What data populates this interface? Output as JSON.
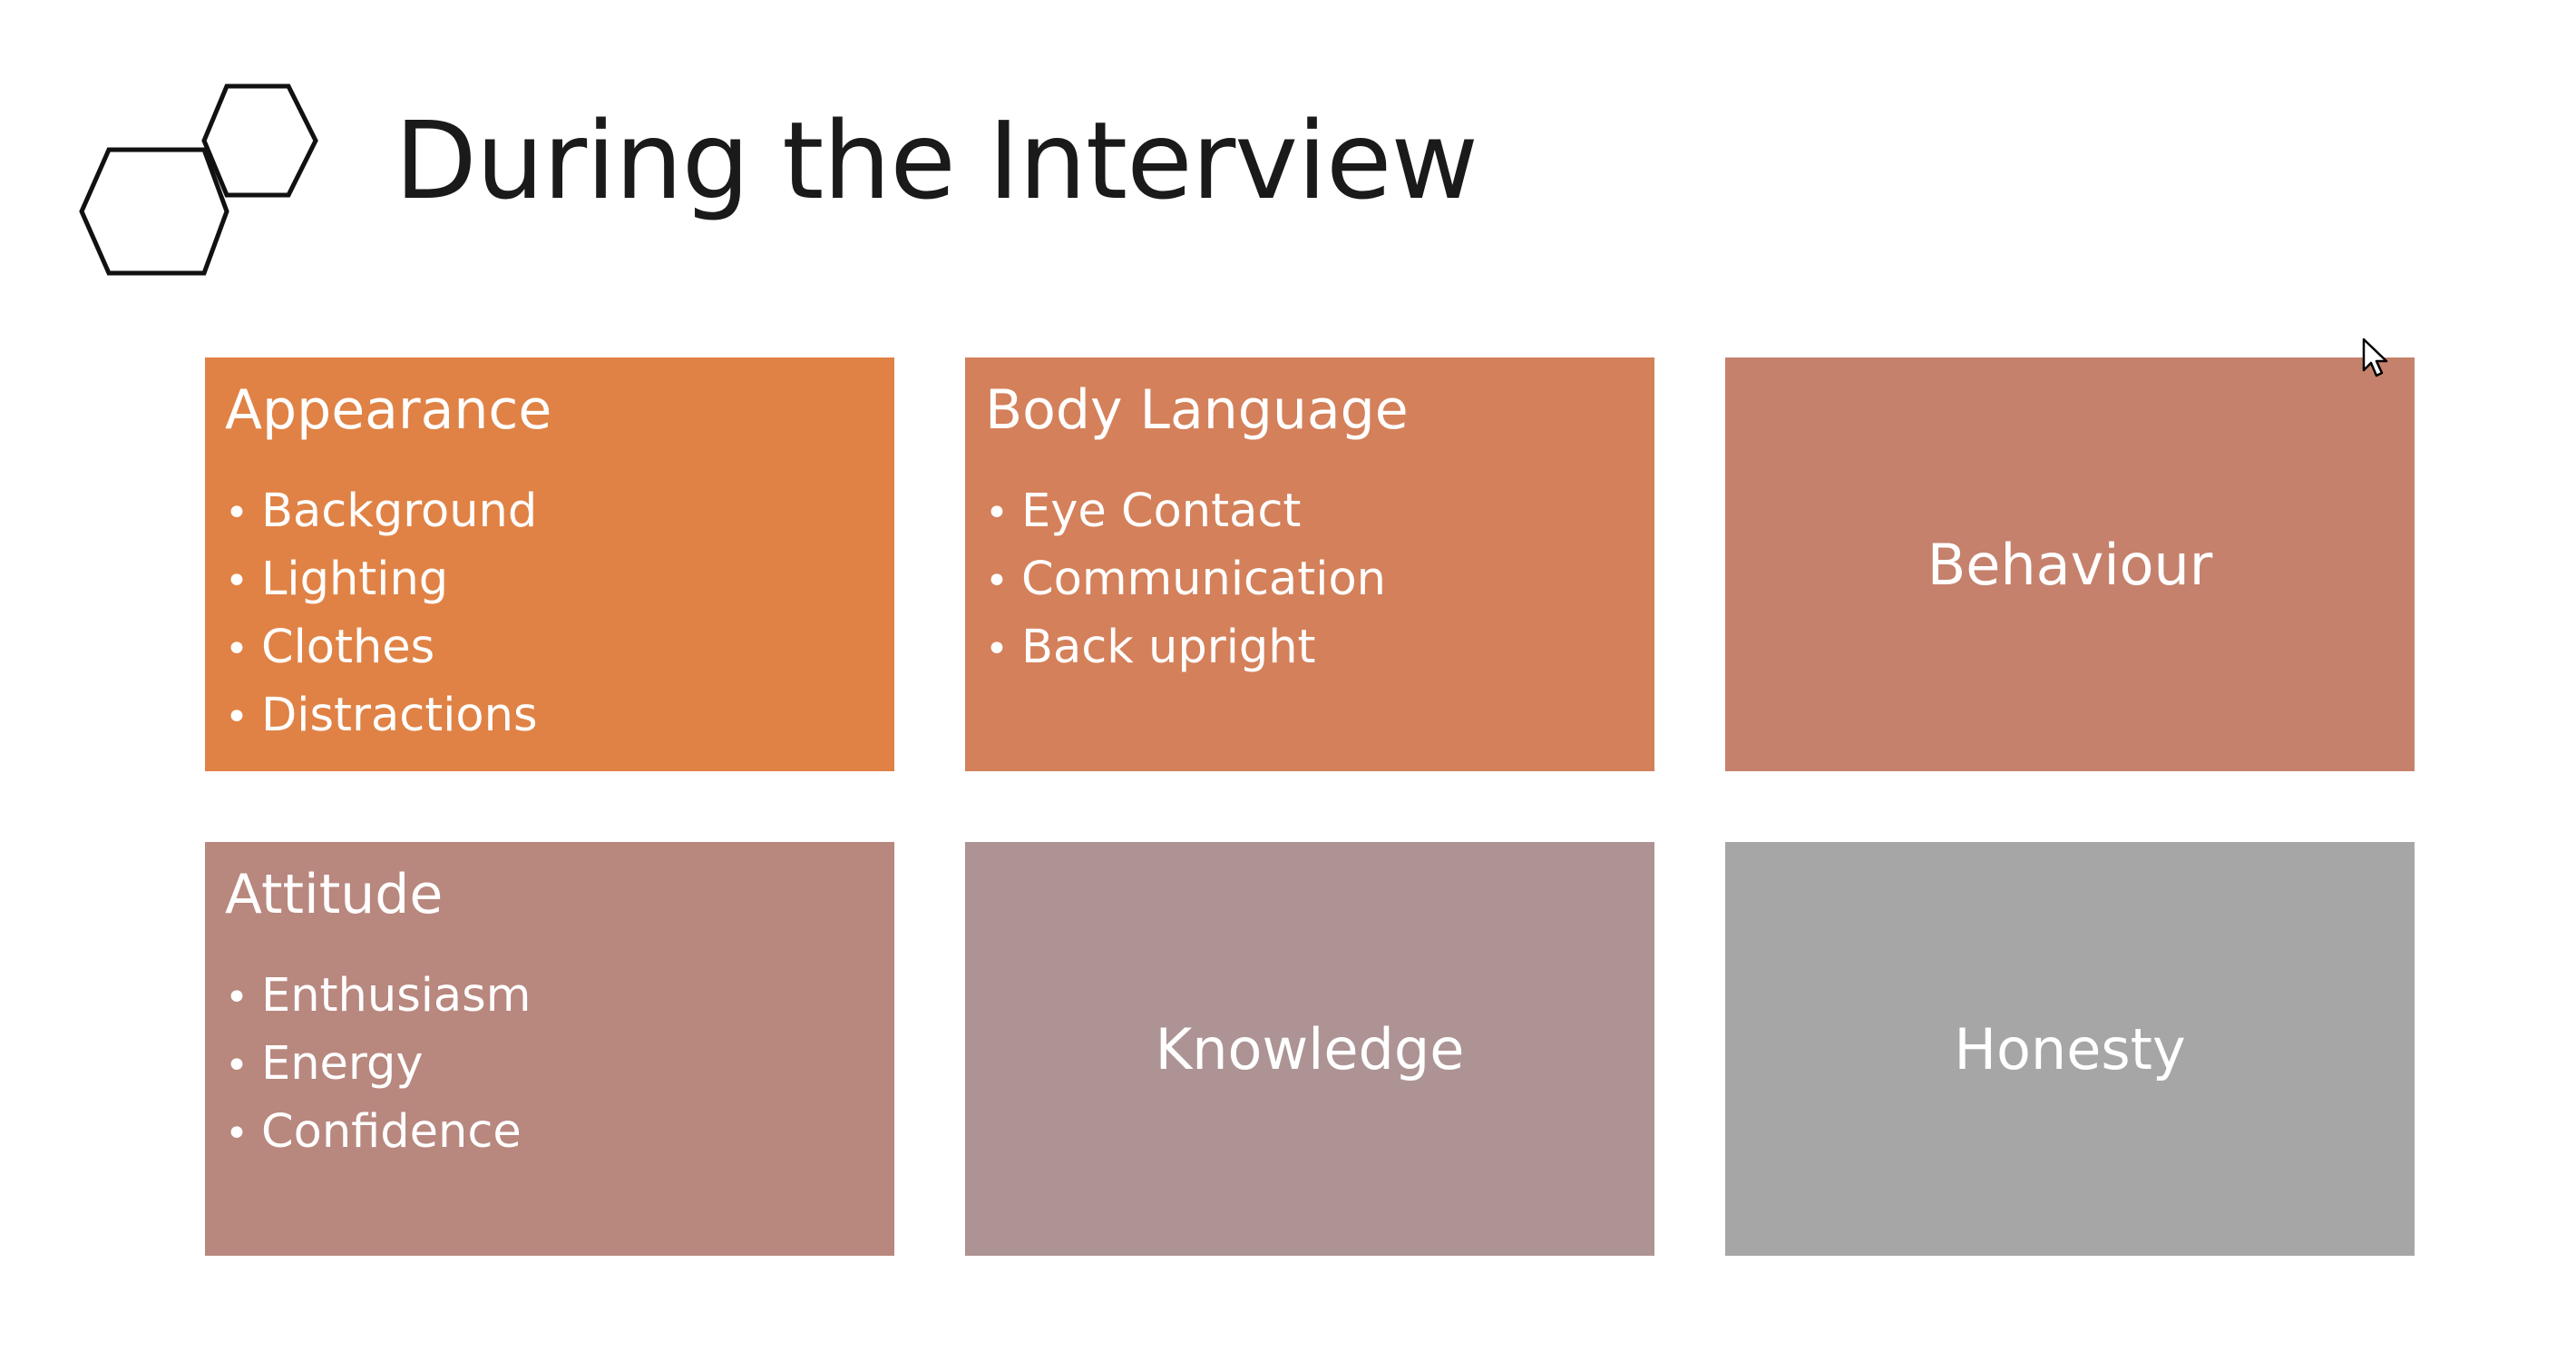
{
  "slide": {
    "title": "During the Interview"
  },
  "tiles": [
    {
      "heading": "Appearance",
      "color": "#e08245",
      "items": [
        "Background",
        "Lighting",
        "Clothes",
        "Distractions"
      ]
    },
    {
      "heading": "Body Language",
      "color": "#d4805a",
      "items": [
        "Eye Contact",
        "Communication",
        "Back upright"
      ]
    },
    {
      "label": "Behaviour",
      "color": "#c5816c"
    },
    {
      "heading": "Attitude",
      "color": "#b8877e",
      "items": [
        "Enthusiasm",
        "Energy",
        "Confidence"
      ]
    },
    {
      "label": "Knowledge",
      "color": "#ad9393"
    },
    {
      "label": "Honesty",
      "color": "#a6a6a6"
    }
  ],
  "icons": {
    "decoration": "hexagons-icon",
    "pointer": "mouse-cursor-icon"
  },
  "bullet_glyph": "•"
}
